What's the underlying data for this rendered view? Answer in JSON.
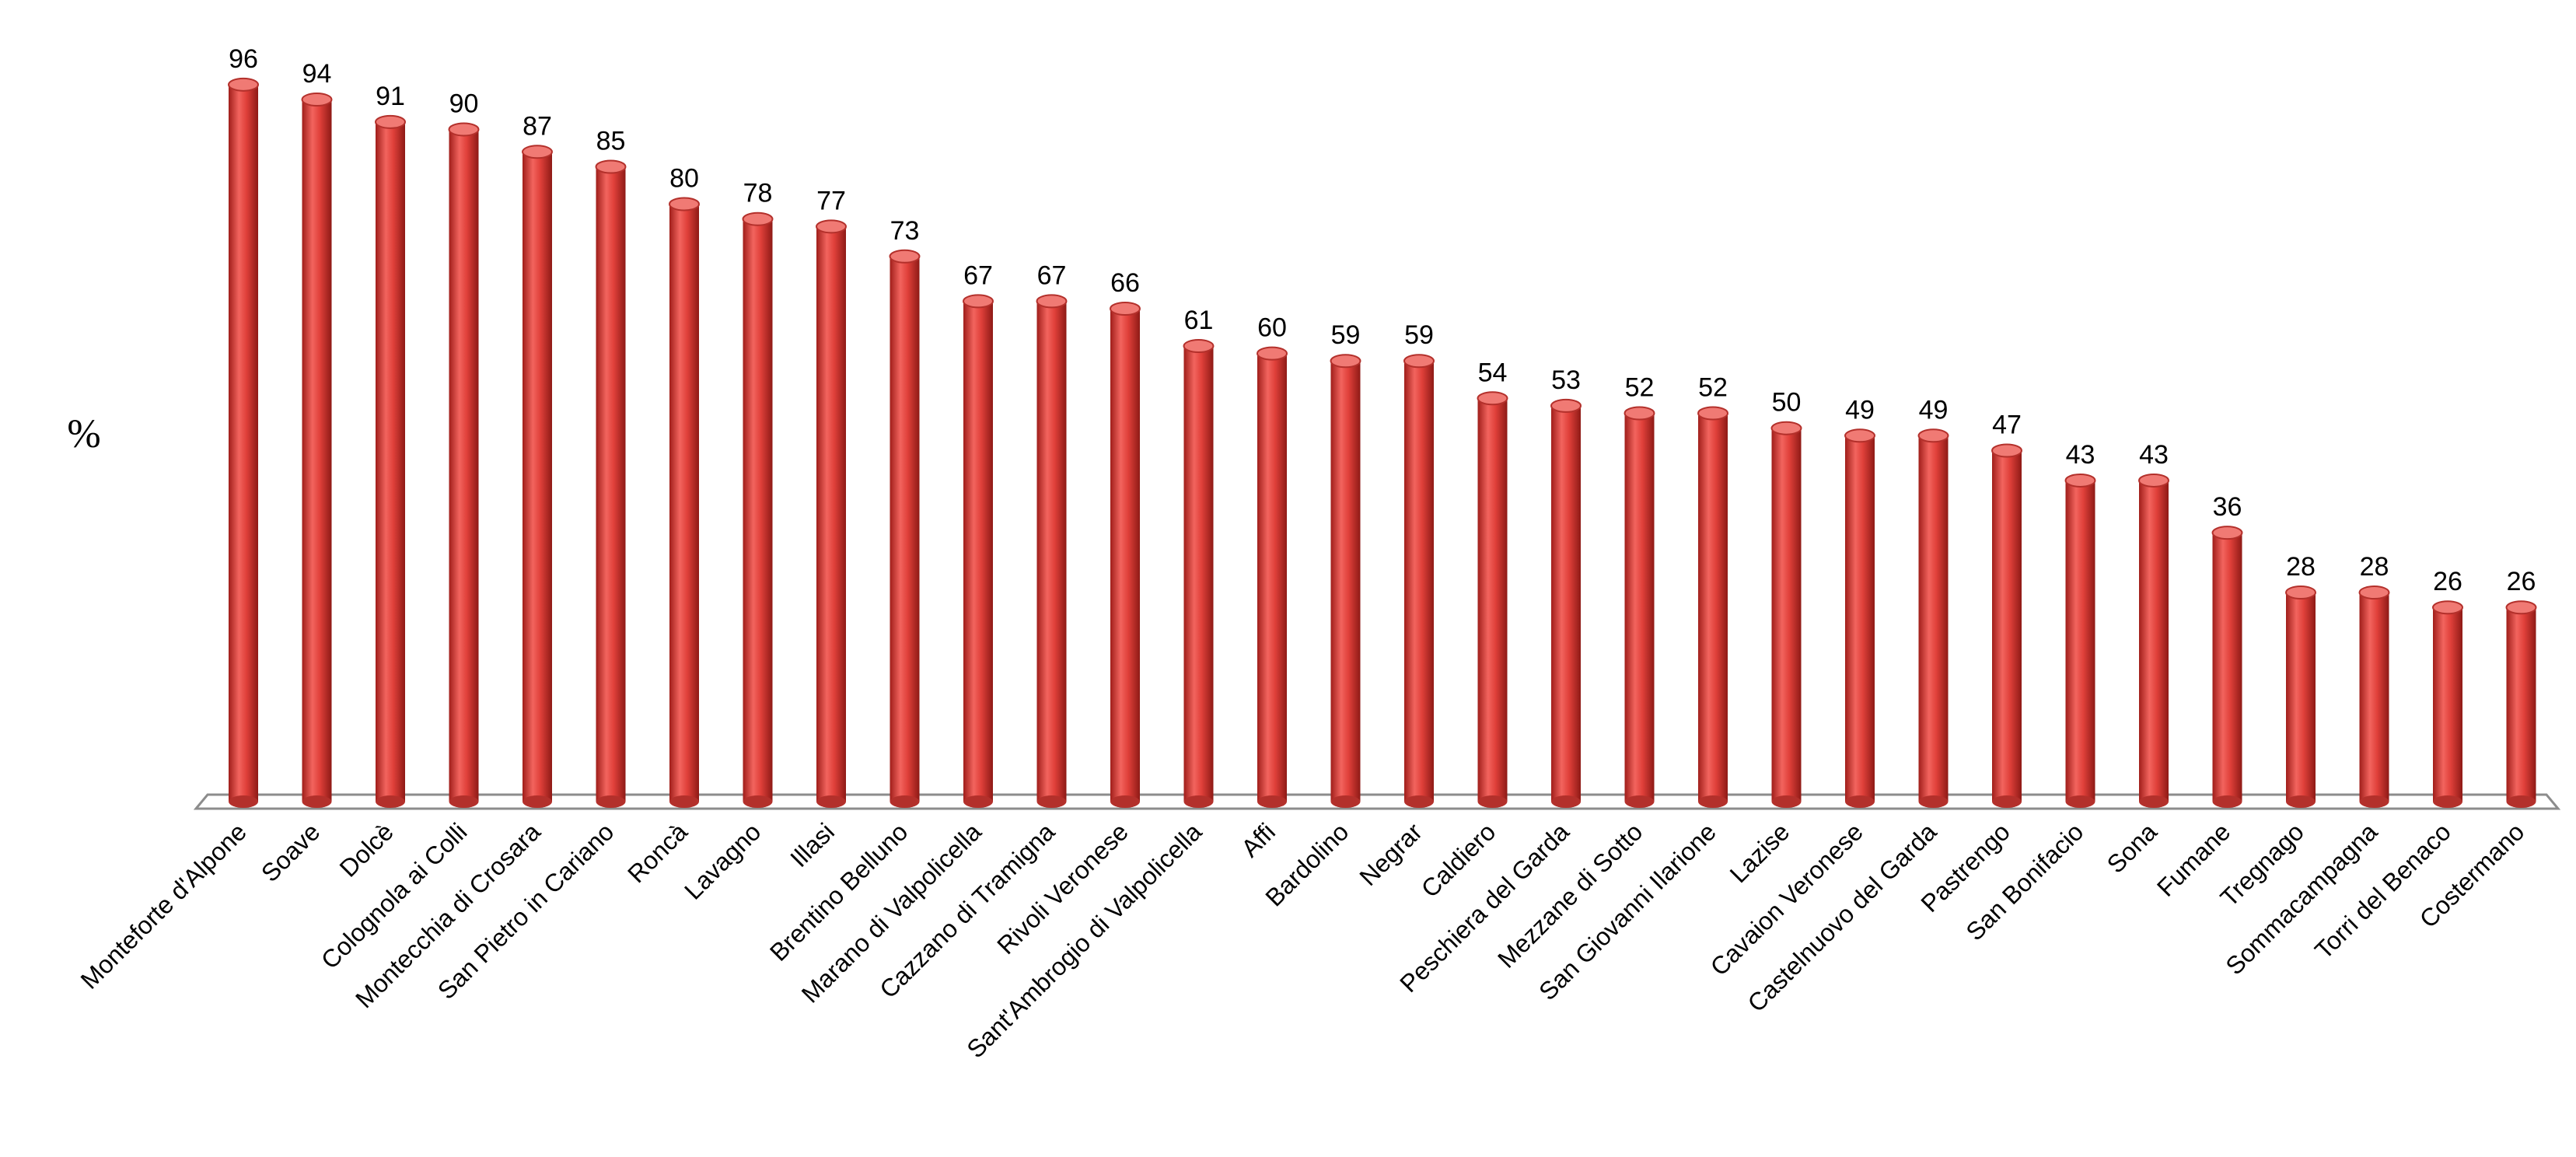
{
  "chart_data": {
    "type": "bar",
    "title": "",
    "xlabel": "",
    "ylabel": "%",
    "ylim": [
      0,
      100
    ],
    "grid": false,
    "legend": "none",
    "bar_color": "#E0403A",
    "categories": [
      "Monteforte d'Alpone",
      "Soave",
      "Dolcè",
      "Colognola ai Colli",
      "Montecchia di Crosara",
      "San Pietro in Cariano",
      "Roncà",
      "Lavagno",
      "Illasi",
      "Brentino Belluno",
      "Marano di Valpolicella",
      "Cazzano di Tramigna",
      "Rivoli Veronese",
      "Sant'Ambrogio di Valpolicella",
      "Affi",
      "Bardolino",
      "Negrar",
      "Caldiero",
      "Peschiera del Garda",
      "Mezzane di Sotto",
      "San Giovanni Ilarione",
      "Lazise",
      "Cavaion Veronese",
      "Castelnuovo del Garda",
      "Pastrengo",
      "San Bonifacio",
      "Sona",
      "Fumane",
      "Tregnago",
      "Sommacampagna",
      "Torri del Benaco",
      "Costermano"
    ],
    "values": [
      96,
      94,
      91,
      90,
      87,
      85,
      80,
      78,
      77,
      73,
      67,
      67,
      66,
      61,
      60,
      59,
      59,
      54,
      53,
      52,
      52,
      50,
      49,
      49,
      47,
      43,
      43,
      36,
      28,
      28,
      26,
      26
    ]
  }
}
